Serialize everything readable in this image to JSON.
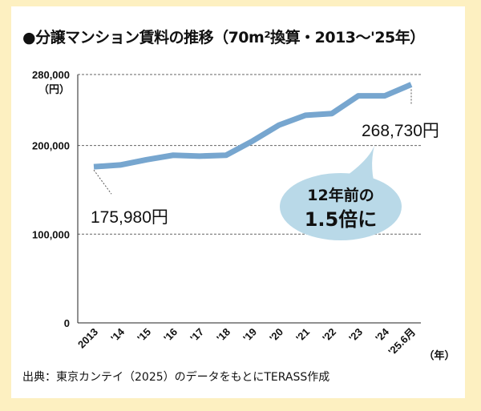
{
  "title": "●分譲マンション賃料の推移（70m²換算・2013〜'25年）",
  "source": "出典：東京カンテイ（2025）のデータをもとにTERASS作成",
  "colors": {
    "line": "#77a6cf",
    "bubble": "#b9d9e8",
    "frame": "#fdf0c1"
  },
  "chart_data": {
    "type": "line",
    "title": "●分譲マンション賃料の推移（70m²換算・2013〜'25年）",
    "ylabel": "（円）",
    "xlabel": "（年）",
    "ylim": [
      0,
      280000
    ],
    "yticks": [
      0,
      100000,
      200000,
      280000
    ],
    "ytick_labels": [
      "0",
      "100,000",
      "200,000",
      "280,000"
    ],
    "grid": "dashed horizontal at 100,000 / 200,000 / 280,000",
    "categories": [
      "2013",
      "'14",
      "'15",
      "'16",
      "'17",
      "'18",
      "'19",
      "'20",
      "'21",
      "'22",
      "'23",
      "'24",
      "'25.6月"
    ],
    "values": [
      175980,
      178000,
      184000,
      189000,
      188000,
      189000,
      205000,
      223000,
      234000,
      236000,
      256000,
      256000,
      268730
    ],
    "annotations": {
      "start_label": "175,980円",
      "end_label": "268,730円",
      "callout_line1": "12年前の",
      "callout_line2": "1.5倍に"
    }
  }
}
